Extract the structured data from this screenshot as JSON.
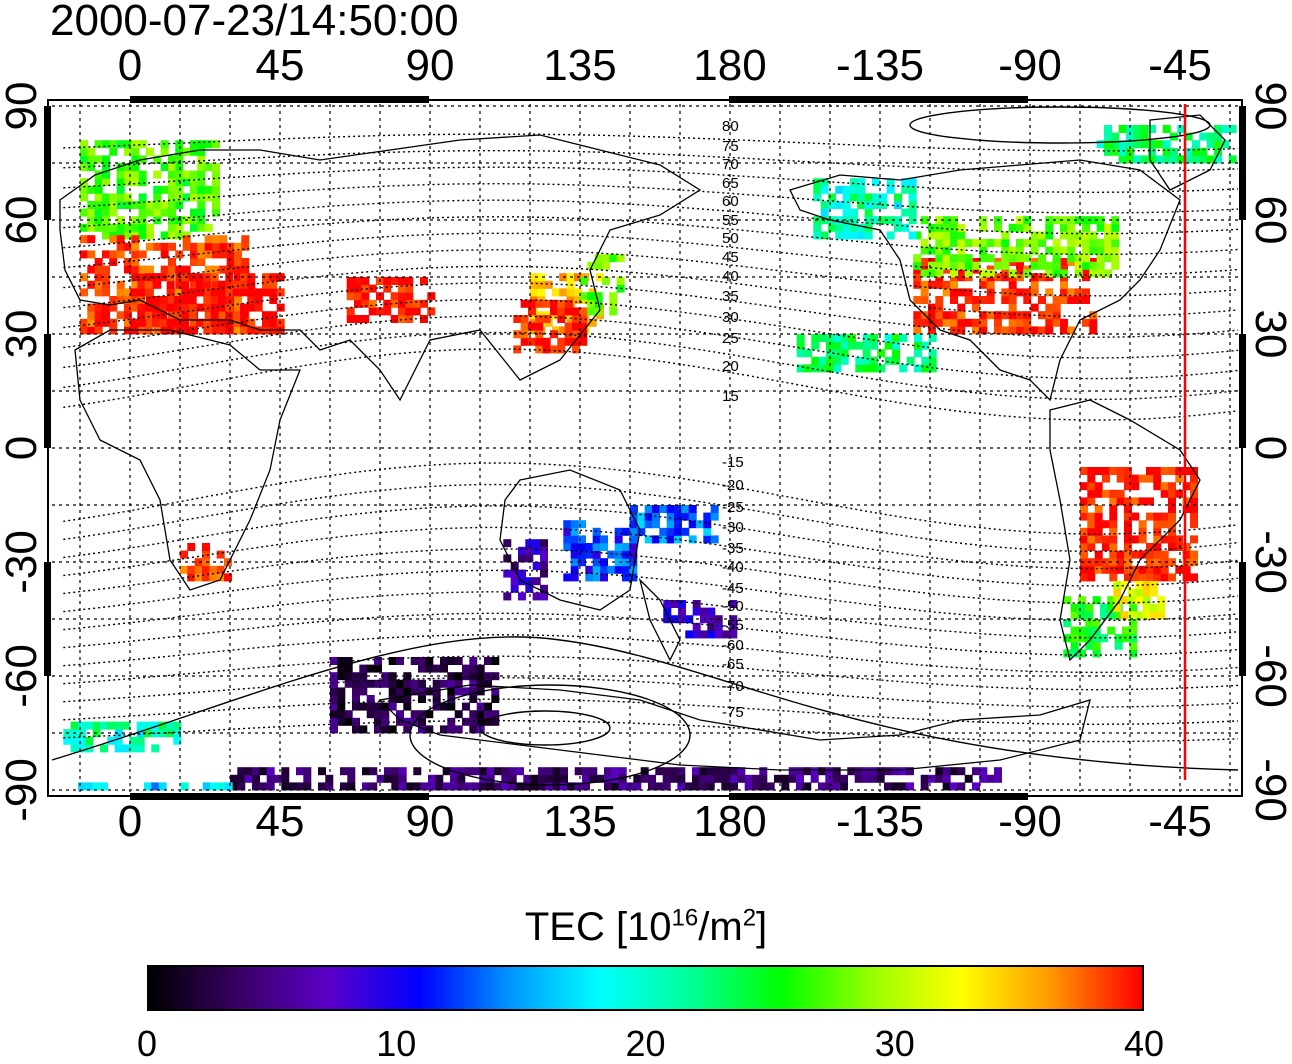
{
  "timestamp": "2000-07-23/14:50:00",
  "x_ticks": [
    "0",
    "45",
    "90",
    "135",
    "180",
    "-135",
    "-90",
    "-45"
  ],
  "y_ticks": [
    "90",
    "60",
    "30",
    "0",
    "-30",
    "-60",
    "-90"
  ],
  "contour_labels_north": [
    "80",
    "75",
    "70",
    "65",
    "60",
    "55",
    "50",
    "45",
    "40",
    "35",
    "30",
    "25",
    "20",
    "15"
  ],
  "contour_labels_south": [
    "-15",
    "-20",
    "-25",
    "-30",
    "-35",
    "-40",
    "-45",
    "-50",
    "-55",
    "-60",
    "-65",
    "-70",
    "-75"
  ],
  "colorbar": {
    "title_main": "TEC  [10",
    "title_exp1": "16",
    "title_mid": "/m",
    "title_exp2": "2",
    "title_end": "]",
    "ticks": [
      "0",
      "10",
      "20",
      "30",
      "40"
    ],
    "range": [
      0,
      40
    ],
    "colors": [
      "#000000",
      "#3a0064",
      "#5a00c8",
      "#0000ff",
      "#0096ff",
      "#00ffff",
      "#00ff96",
      "#00ff00",
      "#96ff00",
      "#ffff00",
      "#ff9600",
      "#ff0000"
    ]
  },
  "chart_data": {
    "type": "heatmap",
    "title": "2000-07-23/14:50:00",
    "longitude_ticks": [
      0,
      45,
      90,
      135,
      180,
      -135,
      -90,
      -45
    ],
    "latitude_ticks": [
      90,
      60,
      30,
      0,
      -30,
      -60,
      -90
    ],
    "value_label": "TEC [10^16/m^2]",
    "value_range": [
      0,
      40
    ],
    "terminator_longitude": -44,
    "regions": [
      {
        "lon": [
          -15,
          25
        ],
        "lat": [
          55,
          80
        ],
        "tec": 24
      },
      {
        "lon": [
          -15,
          35
        ],
        "lat": [
          30,
          55
        ],
        "tec": 38
      },
      {
        "lon": [
          0,
          45
        ],
        "lat": [
          30,
          45
        ],
        "tec": 40
      },
      {
        "lon": [
          65,
          90
        ],
        "lat": [
          33,
          45
        ],
        "tec": 39
      },
      {
        "lon": [
          120,
          140
        ],
        "lat": [
          30,
          45
        ],
        "tec": 33
      },
      {
        "lon": [
          135,
          148
        ],
        "lat": [
          35,
          50
        ],
        "tec": 24
      },
      {
        "lon": [
          115,
          135
        ],
        "lat": [
          25,
          38
        ],
        "tec": 39
      },
      {
        "lon": [
          -125,
          -70
        ],
        "lat": [
          30,
          50
        ],
        "tec": 38
      },
      {
        "lon": [
          -125,
          -65
        ],
        "lat": [
          45,
          60
        ],
        "tec": 25
      },
      {
        "lon": [
          -155,
          -125
        ],
        "lat": [
          55,
          70
        ],
        "tec": 18
      },
      {
        "lon": [
          -75,
          -40
        ],
        "lat": [
          -35,
          -5
        ],
        "tec": 39
      },
      {
        "lon": [
          -80,
          -60
        ],
        "lat": [
          -55,
          -40
        ],
        "tec": 22
      },
      {
        "lon": [
          -65,
          -50
        ],
        "lat": [
          -45,
          -35
        ],
        "tec": 30
      },
      {
        "lon": [
          15,
          30
        ],
        "lat": [
          -35,
          -25
        ],
        "tec": 38
      },
      {
        "lon": [
          112,
          125
        ],
        "lat": [
          -40,
          -25
        ],
        "tec": 6
      },
      {
        "lon": [
          130,
          150
        ],
        "lat": [
          -35,
          -20
        ],
        "tec": 11
      },
      {
        "lon": [
          150,
          175
        ],
        "lat": [
          -25,
          -15
        ],
        "tec": 12
      },
      {
        "lon": [
          160,
          180
        ],
        "lat": [
          -50,
          -40
        ],
        "tec": 7
      },
      {
        "lon": [
          60,
          110
        ],
        "lat": [
          -75,
          -55
        ],
        "tec": 3
      },
      {
        "lon": [
          30,
          180
        ],
        "lat": [
          -90,
          -85
        ],
        "tec": 4
      },
      {
        "lon": [
          -180,
          -100
        ],
        "lat": [
          -90,
          -85
        ],
        "tec": 4
      },
      {
        "lon": [
          -20,
          30
        ],
        "lat": [
          -90,
          -88
        ],
        "tec": 15
      },
      {
        "lon": [
          -20,
          15
        ],
        "lat": [
          -80,
          -72
        ],
        "tec": 18
      },
      {
        "lon": [
          -70,
          -30
        ],
        "lat": [
          75,
          85
        ],
        "tec": 20
      },
      {
        "lon": [
          -160,
          -120
        ],
        "lat": [
          20,
          30
        ],
        "tec": 20
      }
    ]
  }
}
